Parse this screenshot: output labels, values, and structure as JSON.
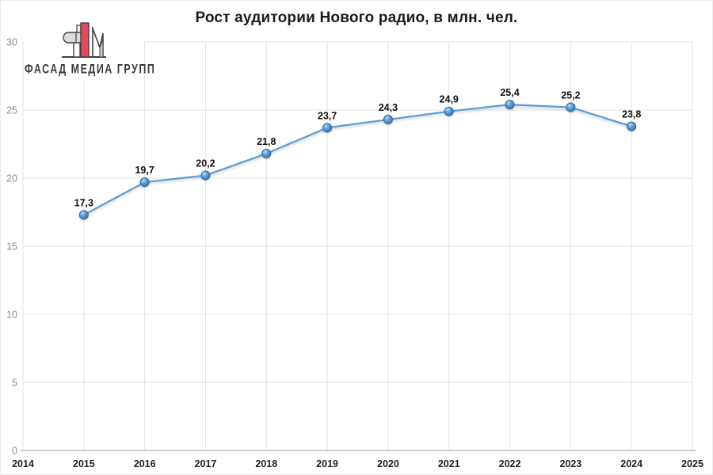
{
  "title": "Рост аудитории Нового радио, в млн. чел.",
  "logo": {
    "text": "ФАСАД МЕДИА ГРУПП",
    "colors": {
      "red": "#e5485c",
      "gray_fill": "#dcdcdc",
      "light_fill": "#efefef",
      "outline": "#3f3f3f"
    }
  },
  "chart_data": {
    "type": "line",
    "title": "Рост аудитории Нового радио, в млн. чел.",
    "x": [
      2015,
      2016,
      2017,
      2018,
      2019,
      2020,
      2021,
      2022,
      2023,
      2024
    ],
    "values": [
      17.3,
      19.7,
      20.2,
      21.8,
      23.7,
      24.3,
      24.9,
      25.4,
      25.2,
      23.8
    ],
    "point_labels": [
      "17,3",
      "19,7",
      "20,2",
      "21,8",
      "23,7",
      "24,3",
      "24,9",
      "25,4",
      "25,2",
      "23,8"
    ],
    "x_ticks": [
      2014,
      2015,
      2016,
      2017,
      2018,
      2019,
      2020,
      2021,
      2022,
      2023,
      2024,
      2025
    ],
    "y_ticks": [
      0,
      5,
      10,
      15,
      20,
      25,
      30
    ],
    "xlim": [
      2014,
      2025
    ],
    "ylim": [
      0,
      30
    ],
    "xlabel": "",
    "ylabel": "",
    "grid": true,
    "legend_position": "none",
    "colors": {
      "line": "#5b9bd5",
      "marker_edge": "#2a69a5",
      "marker_light": "#b9daf3",
      "marker_mid": "#5b9bd5",
      "marker_dark": "#2f6fad",
      "grid": "#e3e3e3",
      "axis_line": "#bfbfbf",
      "x_tick_label": "#1f1f1f",
      "y_tick_label": "#8c8c8c",
      "data_label": "#111111"
    }
  }
}
